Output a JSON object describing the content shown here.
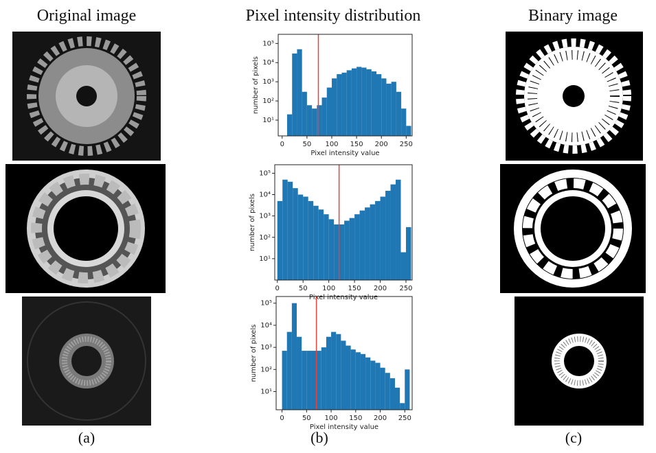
{
  "headers": [
    "Original image",
    "Pixel intensity distribution",
    "Binary image"
  ],
  "panel_labels": [
    "(a)",
    "(b)",
    "(c)"
  ],
  "chart_data": [
    {
      "type": "histogram",
      "xlabel": "Pixel intensity value",
      "ylabel": "number of pixels",
      "color": "#1f77b4",
      "log_y": true,
      "threshold": 73,
      "threshold_color": "#e8413a",
      "bins": [
        0,
        10,
        20,
        30,
        40,
        50,
        60,
        70,
        80,
        90,
        100,
        110,
        120,
        130,
        140,
        150,
        160,
        170,
        180,
        190,
        200,
        210,
        220,
        230,
        240,
        250,
        260
      ],
      "values": [
        0,
        20,
        30000,
        50000,
        300,
        60,
        40,
        60,
        150,
        500,
        1500,
        2500,
        3000,
        4000,
        5000,
        6000,
        5500,
        4500,
        3500,
        2500,
        1500,
        800,
        1000,
        300,
        40,
        5
      ],
      "xlim": [
        -8,
        262
      ],
      "xticks": [
        0,
        50,
        100,
        150,
        200,
        250
      ],
      "ylim": [
        1.5,
        300000
      ],
      "yticks": [
        {
          "value": 10,
          "label": "10¹"
        },
        {
          "value": 100,
          "label": "10²"
        },
        {
          "value": 1000,
          "label": "10³"
        },
        {
          "value": 10000,
          "label": "10⁴"
        },
        {
          "value": 100000,
          "label": "10⁵"
        }
      ]
    },
    {
      "type": "histogram",
      "xlabel": "Pixel intensity value",
      "ylabel": "number of pixels",
      "color": "#1f77b4",
      "log_y": true,
      "threshold": 120,
      "threshold_color": "#e8413a",
      "bins": [
        0,
        10,
        20,
        30,
        40,
        50,
        60,
        70,
        80,
        90,
        100,
        110,
        120,
        130,
        140,
        150,
        160,
        170,
        180,
        190,
        200,
        210,
        220,
        230,
        240,
        250,
        260
      ],
      "values": [
        5000,
        50000,
        40000,
        20000,
        10000,
        8000,
        5000,
        3000,
        2000,
        1200,
        700,
        400,
        400,
        600,
        800,
        1200,
        1800,
        2500,
        3500,
        5000,
        8000,
        15000,
        30000,
        50000,
        20,
        300
      ],
      "xlim": [
        -5,
        262
      ],
      "xticks": [
        0,
        50,
        100,
        150,
        200,
        250
      ],
      "ylim": [
        1,
        250000
      ],
      "yticks": [
        {
          "value": 10,
          "label": "10¹"
        },
        {
          "value": 100,
          "label": "10²"
        },
        {
          "value": 1000,
          "label": "10³"
        },
        {
          "value": 10000,
          "label": "10⁴"
        },
        {
          "value": 100000,
          "label": "10⁵"
        }
      ]
    },
    {
      "type": "histogram",
      "xlabel": "Pixel intensity value",
      "ylabel": "number of pixels",
      "color": "#1f77b4",
      "log_y": true,
      "threshold": 70,
      "threshold_color": "#e8413a",
      "bins": [
        0,
        10,
        20,
        30,
        40,
        50,
        60,
        70,
        80,
        90,
        100,
        110,
        120,
        130,
        140,
        150,
        160,
        170,
        180,
        190,
        200,
        210,
        220,
        230,
        240,
        250,
        260
      ],
      "values": [
        700,
        5000,
        100000,
        3000,
        700,
        700,
        700,
        700,
        1000,
        3000,
        5000,
        4000,
        2000,
        1200,
        800,
        600,
        500,
        350,
        250,
        200,
        120,
        70,
        40,
        15,
        3,
        100
      ],
      "xlim": [
        -12,
        265
      ],
      "xticks": [
        0,
        50,
        100,
        150,
        200,
        250
      ],
      "ylim": [
        1.5,
        200000
      ],
      "yticks": [
        {
          "value": 10,
          "label": "10¹"
        },
        {
          "value": 100,
          "label": "10²"
        },
        {
          "value": 1000,
          "label": "10³"
        },
        {
          "value": 10000,
          "label": "10⁴"
        },
        {
          "value": 100000,
          "label": "10⁵"
        }
      ]
    }
  ]
}
